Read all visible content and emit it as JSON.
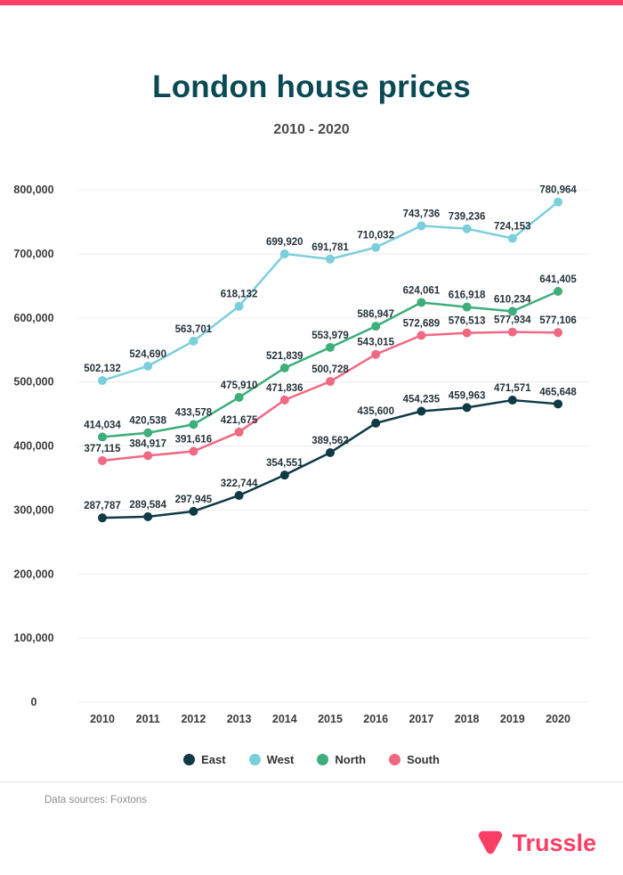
{
  "header": {
    "title": "London house prices",
    "subtitle": "2010 - 2020"
  },
  "footer": {
    "source": "Data sources: Foxtons",
    "brand": "Trussle"
  },
  "colors": {
    "brand_pink": "#fb3e66",
    "title_teal": "#0b4a55",
    "east": "#0f3a46",
    "west": "#7bcfdb",
    "north": "#3eae7b",
    "south": "#ef6982",
    "grid": "#ececec",
    "axis": "#3b3b3b",
    "label": "#26333a"
  },
  "chart_data": {
    "type": "line",
    "title": "London house prices",
    "subtitle": "2010 - 2020",
    "x": [
      2010,
      2011,
      2012,
      2013,
      2014,
      2015,
      2016,
      2017,
      2018,
      2019,
      2020
    ],
    "series": [
      {
        "name": "East",
        "color_key": "east",
        "values": [
          287787,
          289584,
          297945,
          322744,
          354551,
          389562,
          435600,
          454235,
          459963,
          471571,
          465648
        ]
      },
      {
        "name": "West",
        "color_key": "west",
        "values": [
          502132,
          524690,
          563701,
          618132,
          699920,
          691781,
          710032,
          743736,
          739236,
          724153,
          780964
        ]
      },
      {
        "name": "North",
        "color_key": "north",
        "values": [
          414034,
          420538,
          433578,
          475910,
          521839,
          553979,
          586947,
          624061,
          616918,
          610234,
          641405
        ]
      },
      {
        "name": "South",
        "color_key": "south",
        "values": [
          377115,
          384917,
          391616,
          421675,
          471836,
          500728,
          543015,
          572689,
          576513,
          577934,
          577106
        ]
      }
    ],
    "ylim": [
      0,
      800000
    ],
    "yticks": [
      0,
      100000,
      200000,
      300000,
      400000,
      500000,
      600000,
      700000,
      800000
    ],
    "grid": true,
    "point_labels": true,
    "legend_position": "bottom",
    "legend_order": [
      "East",
      "West",
      "North",
      "South"
    ]
  }
}
